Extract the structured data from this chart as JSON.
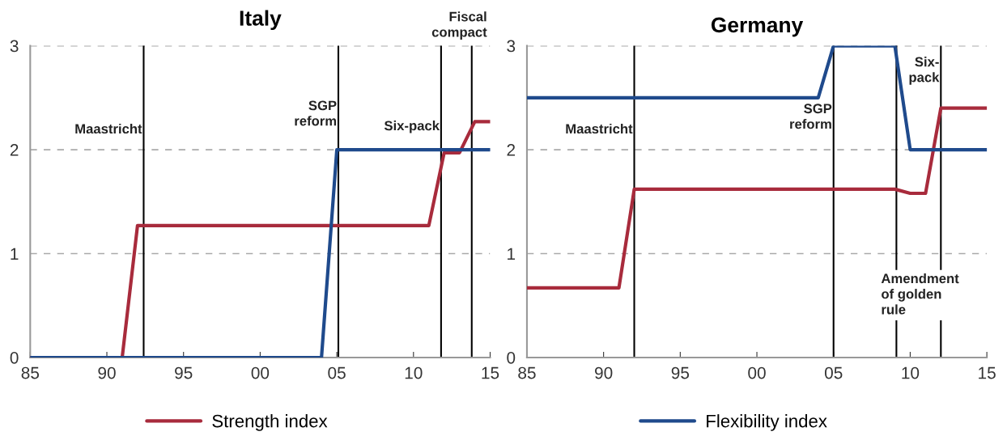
{
  "chart_data": [
    {
      "type": "line",
      "title": "Italy",
      "xlim": [
        1985,
        2015
      ],
      "ylim": [
        0,
        3
      ],
      "xticks": [
        {
          "value": 1985,
          "label": "85"
        },
        {
          "value": 1990,
          "label": "90"
        },
        {
          "value": 1995,
          "label": "95"
        },
        {
          "value": 2000,
          "label": "00"
        },
        {
          "value": 2005,
          "label": "05"
        },
        {
          "value": 2010,
          "label": "10"
        },
        {
          "value": 2015,
          "label": "15"
        }
      ],
      "yticks": [
        0,
        1,
        2,
        3
      ],
      "grid": "y",
      "legend": "bottom",
      "series": [
        {
          "name": "Strength index",
          "color": "#a82b3c",
          "x": [
            1985,
            1991,
            1992,
            2011,
            2012,
            2013,
            2014,
            2015
          ],
          "values": [
            0,
            0,
            1.27,
            1.27,
            1.97,
            1.97,
            2.27,
            2.27
          ]
        },
        {
          "color": "#1f4a8c",
          "x": [
            1985,
            2004,
            2005,
            2015
          ],
          "values": [
            0,
            0,
            2,
            2
          ]
        }
      ],
      "ref_lines": [
        {
          "axis": "x",
          "value": 1992.4,
          "label": "Maastricht",
          "color": "#000000"
        },
        {
          "axis": "x",
          "value": 2005.1,
          "label": "SGP\nreform",
          "color": "#000000"
        },
        {
          "axis": "x",
          "value": 2011.8,
          "label": "Six-pack",
          "color": "#000000"
        },
        {
          "axis": "x",
          "value": 2013.8,
          "label": "Fiscal\ncompact",
          "color": "#000000"
        }
      ]
    },
    {
      "type": "line",
      "title": "Germany",
      "xlim": [
        1985,
        2015
      ],
      "ylim": [
        0,
        3
      ],
      "xticks": [
        {
          "value": 1985,
          "label": "85"
        },
        {
          "value": 1990,
          "label": "90"
        },
        {
          "value": 1995,
          "label": "95"
        },
        {
          "value": 2000,
          "label": "00"
        },
        {
          "value": 2005,
          "label": "05"
        },
        {
          "value": 2010,
          "label": "10"
        },
        {
          "value": 2015,
          "label": "15"
        }
      ],
      "yticks": [
        0,
        1,
        2,
        3
      ],
      "grid": "y",
      "legend": "bottom",
      "series": [
        {
          "color": "#a82b3c",
          "x": [
            1985,
            1991,
            1992,
            2009,
            2010,
            2011,
            2012,
            2015
          ],
          "values": [
            0.67,
            0.67,
            1.62,
            1.62,
            1.58,
            1.58,
            2.4,
            2.4
          ]
        },
        {
          "name": "Flexibility index",
          "color": "#1f4a8c",
          "x": [
            1985,
            2004,
            2005,
            2009,
            2010,
            2015
          ],
          "values": [
            2.5,
            2.5,
            3,
            3,
            2,
            2
          ]
        }
      ],
      "ref_lines": [
        {
          "axis": "x",
          "value": 1992,
          "label": "Maastricht",
          "color": "#000000"
        },
        {
          "axis": "x",
          "value": 2005,
          "label": "SGP\nreform",
          "color": "#000000"
        },
        {
          "axis": "x",
          "value": 2009.1,
          "label": "Amendment\nof golden\nrule",
          "color": "#000000"
        },
        {
          "axis": "x",
          "value": 2012,
          "label": "Six-\npack",
          "color": "#000000"
        }
      ]
    }
  ]
}
